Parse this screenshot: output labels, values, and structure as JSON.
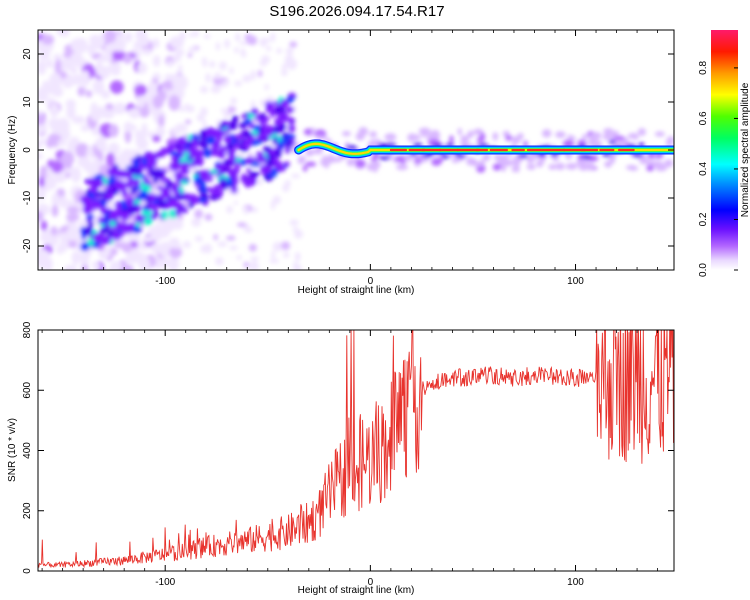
{
  "title": "S196.2026.094.17.54.R17",
  "chart_data": [
    {
      "type": "heatmap",
      "name": "spectrogram",
      "xlabel": "Height of straight line (km)",
      "ylabel": "Frequency (Hz)",
      "xlim": [
        -162,
        148
      ],
      "ylim": [
        -25,
        25
      ],
      "xticks": [
        -100,
        0,
        100
      ],
      "yticks": [
        -20,
        -10,
        0,
        10,
        20
      ],
      "colorbar": {
        "label": "Normalized spectral amplitude",
        "range": [
          0,
          0.95
        ],
        "ticks": [
          0.0,
          0.2,
          0.4,
          0.6,
          0.8
        ]
      },
      "features": [
        {
          "desc": "strong narrow line near 0 Hz",
          "x": [
            -35,
            148
          ],
          "freq": 0,
          "amplitude": 0.85
        },
        {
          "desc": "rising diagonal band",
          "x": [
            -140,
            -38
          ],
          "freq": [
            -10,
            8
          ],
          "amplitude": 0.3
        },
        {
          "desc": "diffuse noise",
          "x": [
            -162,
            -105
          ],
          "freq": [
            -25,
            25
          ],
          "amplitude": 0.05
        }
      ]
    },
    {
      "type": "line",
      "name": "snr",
      "xlabel": "Height of straight line (km)",
      "ylabel": "SNR (10 * v/v)",
      "xlim": [
        -162,
        148
      ],
      "ylim": [
        0,
        800
      ],
      "xticks": [
        -100,
        0,
        100
      ],
      "yticks": [
        0,
        200,
        400,
        600,
        800
      ],
      "series": [
        {
          "name": "SNR",
          "color": "#e8332d",
          "x": [
            -162,
            -150,
            -140,
            -130,
            -120,
            -110,
            -100,
            -90,
            -80,
            -70,
            -60,
            -50,
            -40,
            -30,
            -25,
            -20,
            -15,
            -10,
            -5,
            0,
            5,
            10,
            15,
            20,
            25,
            30,
            40,
            50,
            60,
            70,
            80,
            90,
            100,
            110,
            120,
            130,
            140,
            148
          ],
          "values": [
            20,
            20,
            25,
            30,
            35,
            45,
            55,
            65,
            80,
            90,
            100,
            115,
            130,
            160,
            190,
            250,
            300,
            340,
            360,
            370,
            400,
            450,
            520,
            570,
            600,
            620,
            640,
            645,
            650,
            640,
            650,
            645,
            640,
            640,
            650,
            645,
            640,
            645
          ]
        }
      ]
    }
  ]
}
